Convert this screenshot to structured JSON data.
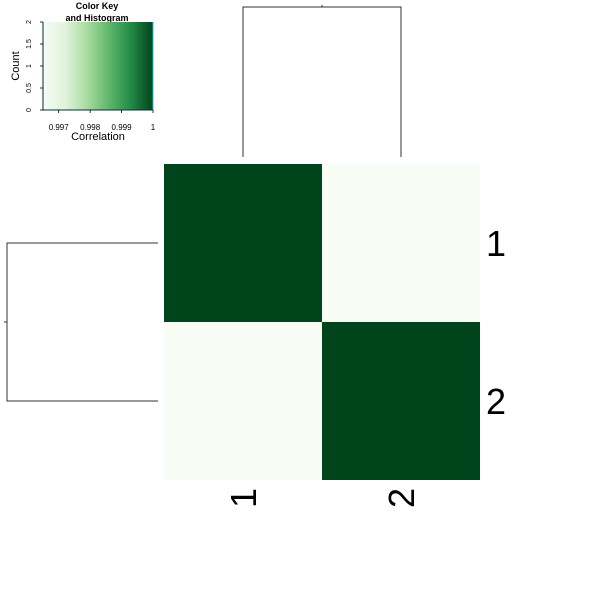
{
  "chart_data": {
    "type": "heatmap",
    "rows": [
      "1",
      "2"
    ],
    "columns": [
      "1",
      "2"
    ],
    "values": [
      [
        1.0,
        0.9965
      ],
      [
        0.9965,
        1.0
      ]
    ],
    "color_scale": {
      "low": "#f7fcf5",
      "mid": "#74c476",
      "high": "#00441b"
    },
    "color_key": {
      "title": "Color Key\nand Histogram",
      "xlabel": "Correlation",
      "ylabel": "Count",
      "x_ticks": [
        "0.997",
        "0.998",
        "0.999",
        "1"
      ],
      "x_tick_values": [
        0.997,
        0.998,
        0.999,
        1.0
      ],
      "xlim": [
        0.9965,
        1.0
      ],
      "y_ticks": [
        "0",
        "0.5",
        "1",
        "1.5",
        "2"
      ],
      "y_tick_values": [
        0,
        0.5,
        1,
        1.5,
        2
      ],
      "ylim": [
        0,
        2
      ]
    },
    "dendrograms": {
      "row": "present",
      "column": "present"
    }
  }
}
